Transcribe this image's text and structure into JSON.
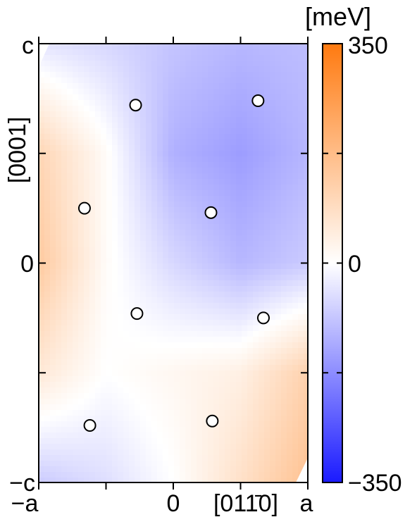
{
  "chart_data": {
    "type": "heatmap",
    "title": "",
    "xlabel": "[01ŀ1̄ 0]",
    "xlabel_display": "[011̄0]",
    "ylabel": "[0001]",
    "x_ticks": [
      "−a",
      "0",
      "a"
    ],
    "y_ticks": [
      "c",
      "0",
      "−c"
    ],
    "xlim": [
      -1,
      1
    ],
    "ylim": [
      -1,
      1
    ],
    "colorbar": {
      "unit": "[meV]",
      "max_label": "350",
      "mid_label": "0",
      "min_label": "−350",
      "range": [
        -350,
        350
      ],
      "colors": {
        "max": "#ff7a10",
        "mid": "#ffffff",
        "min": "#1a1aff"
      }
    },
    "field_cols": [
      "-a",
      "-0.5a",
      "0",
      "0.5a",
      "a"
    ],
    "field_rows": [
      "c",
      "0.5c",
      "0",
      "-0.5c",
      "-c"
    ],
    "field_values": [
      [
        -40,
        -60,
        -90,
        -110,
        -100
      ],
      [
        110,
        10,
        -120,
        -150,
        -110
      ],
      [
        140,
        10,
        -60,
        -110,
        -80
      ],
      [
        60,
        0,
        20,
        40,
        120
      ],
      [
        -80,
        -50,
        0,
        80,
        160
      ]
    ],
    "atoms": [
      {
        "x": -0.28,
        "y": 0.72
      },
      {
        "x": 0.63,
        "y": 0.74
      },
      {
        "x": -0.66,
        "y": 0.25
      },
      {
        "x": 0.28,
        "y": 0.23
      },
      {
        "x": -0.27,
        "y": -0.23
      },
      {
        "x": 0.67,
        "y": -0.25
      },
      {
        "x": -0.62,
        "y": -0.74
      },
      {
        "x": 0.29,
        "y": -0.72
      }
    ],
    "grid": false,
    "legend": "colorbar-right"
  }
}
